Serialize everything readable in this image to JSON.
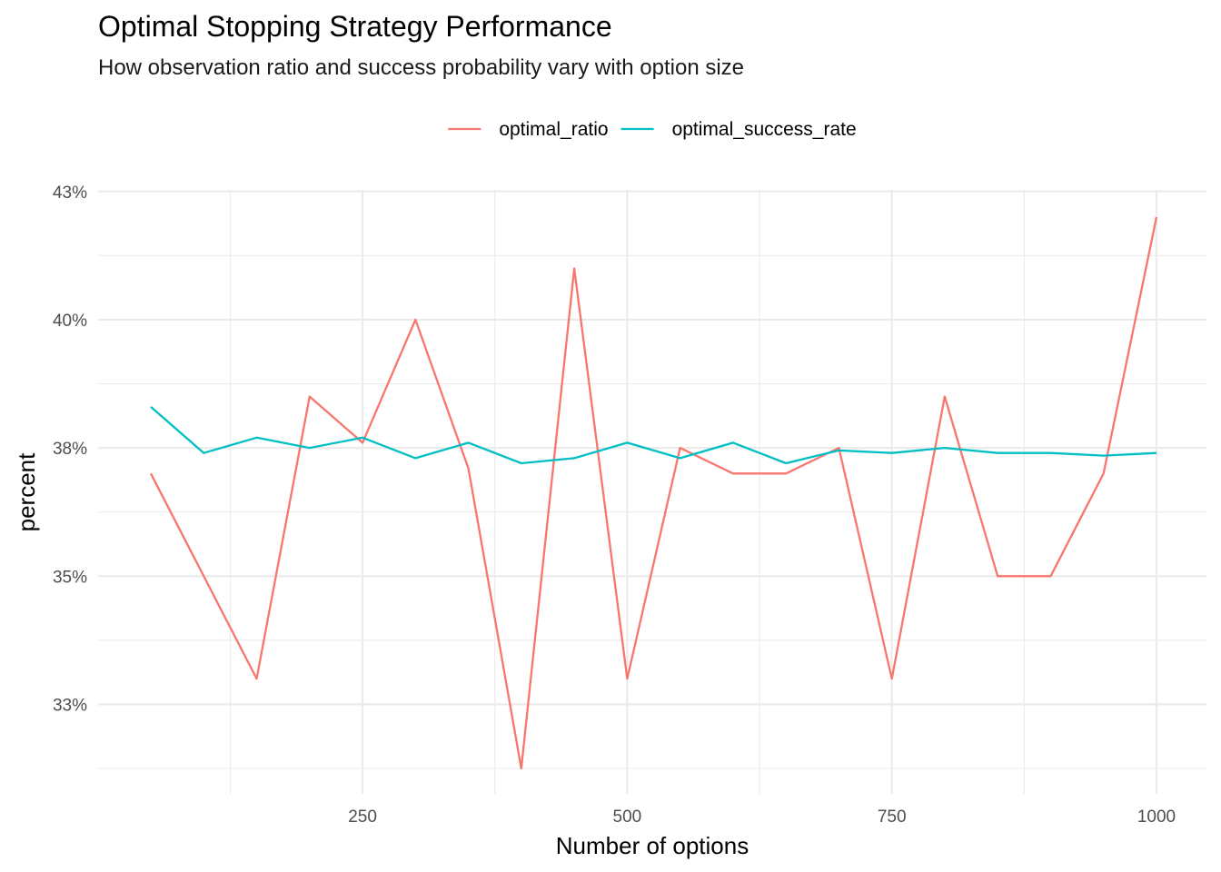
{
  "chart_data": {
    "type": "line",
    "title": "Optimal Stopping Strategy Performance",
    "subtitle": "How observation ratio and success probability vary with option size",
    "xlabel": "Number of options",
    "ylabel": "percent",
    "x": [
      50,
      100,
      150,
      200,
      250,
      300,
      350,
      400,
      450,
      500,
      550,
      600,
      650,
      700,
      750,
      800,
      850,
      900,
      950,
      1000
    ],
    "series": [
      {
        "name": "optimal_ratio",
        "color": "#F8766D",
        "values": [
          0.37,
          0.35,
          0.33,
          0.385,
          0.376,
          0.4,
          0.371,
          0.3125,
          0.41,
          0.33,
          0.375,
          0.37,
          0.37,
          0.375,
          0.33,
          0.385,
          0.35,
          0.35,
          0.37,
          0.42
        ]
      },
      {
        "name": "optimal_success_rate",
        "color": "#00BFC4",
        "values": [
          0.383,
          0.374,
          0.377,
          0.375,
          0.377,
          0.373,
          0.376,
          0.372,
          0.373,
          0.376,
          0.373,
          0.376,
          0.372,
          0.3745,
          0.374,
          0.375,
          0.374,
          0.374,
          0.3735,
          0.374
        ]
      }
    ],
    "xlim": [
      50,
      1000
    ],
    "ylim": [
      0.3125,
      0.42
    ],
    "x_ticks": [
      250,
      500,
      750,
      1000
    ],
    "x_tick_labels": [
      "250",
      "500",
      "750",
      "1000"
    ],
    "y_ticks": [
      0.325,
      0.35,
      0.375,
      0.4,
      0.425
    ],
    "y_tick_labels": [
      "33%",
      "35%",
      "38%",
      "40%",
      "43%"
    ],
    "grid": true,
    "legend_position": "top"
  }
}
